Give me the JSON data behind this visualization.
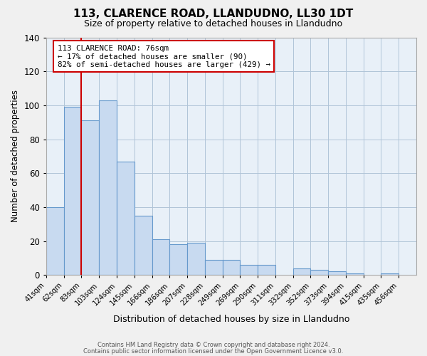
{
  "title": "113, CLARENCE ROAD, LLANDUDNO, LL30 1DT",
  "subtitle": "Size of property relative to detached houses in Llandudno",
  "xlabel": "Distribution of detached houses by size in Llandudno",
  "ylabel": "Number of detached properties",
  "footer_line1": "Contains HM Land Registry data © Crown copyright and database right 2024.",
  "footer_line2": "Contains public sector information licensed under the Open Government Licence v3.0.",
  "bin_labels": [
    "41sqm",
    "62sqm",
    "83sqm",
    "103sqm",
    "124sqm",
    "145sqm",
    "166sqm",
    "186sqm",
    "207sqm",
    "228sqm",
    "249sqm",
    "269sqm",
    "290sqm",
    "311sqm",
    "332sqm",
    "352sqm",
    "373sqm",
    "394sqm",
    "415sqm",
    "435sqm",
    "456sqm"
  ],
  "bar_heights": [
    40,
    99,
    91,
    103,
    67,
    35,
    21,
    18,
    19,
    9,
    9,
    6,
    6,
    0,
    4,
    3,
    2,
    1,
    0,
    1,
    0
  ],
  "bar_color": "#c8daf0",
  "bar_edge_color": "#6699cc",
  "plot_bg_color": "#e8f0f8",
  "ylim": [
    0,
    140
  ],
  "yticks": [
    0,
    20,
    40,
    60,
    80,
    100,
    120,
    140
  ],
  "red_line_color": "#cc0000",
  "annotation_title": "113 CLARENCE ROAD: 76sqm",
  "annotation_line1": "← 17% of detached houses are smaller (90)",
  "annotation_line2": "82% of semi-detached houses are larger (429) →",
  "annotation_box_color": "#ffffff",
  "annotation_box_edge_color": "#cc0000",
  "background_color": "#f0f0f0",
  "grid_color": "#b0c4d8",
  "title_fontsize": 11,
  "subtitle_fontsize": 9
}
